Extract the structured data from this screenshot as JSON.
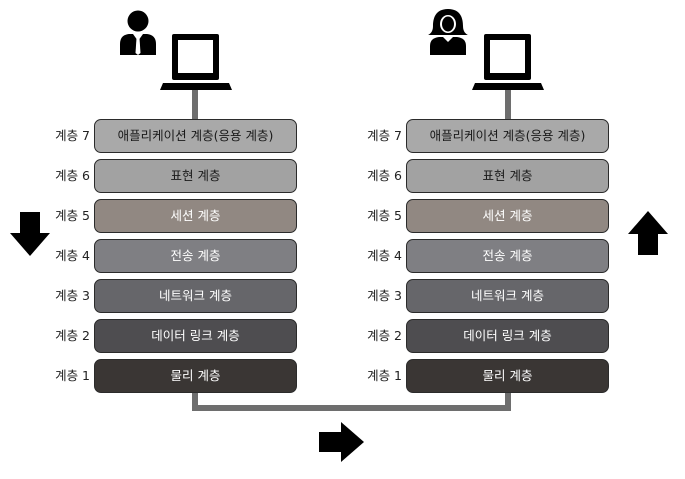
{
  "left_stack": {
    "layers": [
      {
        "label": "계층 7",
        "name": "애플리케이션 계층(응용 계층)",
        "fill": "#a9a9a9",
        "text": "#1a1a1a"
      },
      {
        "label": "계층 6",
        "name": "표현 계층",
        "fill": "#a2a2a2",
        "text": "#1a1a1a"
      },
      {
        "label": "계층 5",
        "name": "세션 계층",
        "fill": "#918882",
        "text": "#ffffff"
      },
      {
        "label": "계층 4",
        "name": "전송 계층",
        "fill": "#7f7f83",
        "text": "#ffffff"
      },
      {
        "label": "계층 3",
        "name": "네트워크 계층",
        "fill": "#66666a",
        "text": "#ffffff"
      },
      {
        "label": "계층 2",
        "name": "데이터 링크 계층",
        "fill": "#4e4d50",
        "text": "#ffffff"
      },
      {
        "label": "계층 1",
        "name": "물리 계층",
        "fill": "#3a3634",
        "text": "#ffffff"
      }
    ]
  },
  "right_stack": {
    "layers": [
      {
        "label": "계층 7",
        "name": "애플리케이션 계층(응용 계층)",
        "fill": "#a9a9a9",
        "text": "#1a1a1a"
      },
      {
        "label": "계층 6",
        "name": "표현 계층",
        "fill": "#a2a2a2",
        "text": "#1a1a1a"
      },
      {
        "label": "계층 5",
        "name": "세션 계층",
        "fill": "#918882",
        "text": "#ffffff"
      },
      {
        "label": "계층 4",
        "name": "전송 계층",
        "fill": "#7f7f83",
        "text": "#ffffff"
      },
      {
        "label": "계층 3",
        "name": "네트워크 계층",
        "fill": "#66666a",
        "text": "#ffffff"
      },
      {
        "label": "계층 2",
        "name": "데이터 링크 계층",
        "fill": "#4e4d50",
        "text": "#ffffff"
      },
      {
        "label": "계층 1",
        "name": "물리 계층",
        "fill": "#3a3634",
        "text": "#ffffff"
      }
    ]
  },
  "icons": {
    "sender": "man-user-icon",
    "receiver": "woman-user-icon",
    "computer": "laptop-icon",
    "down": "arrow-down-icon",
    "up": "arrow-up-icon",
    "right": "arrow-right-icon"
  },
  "colors": {
    "wire": "#6e6e6e",
    "icon": "#000000"
  }
}
